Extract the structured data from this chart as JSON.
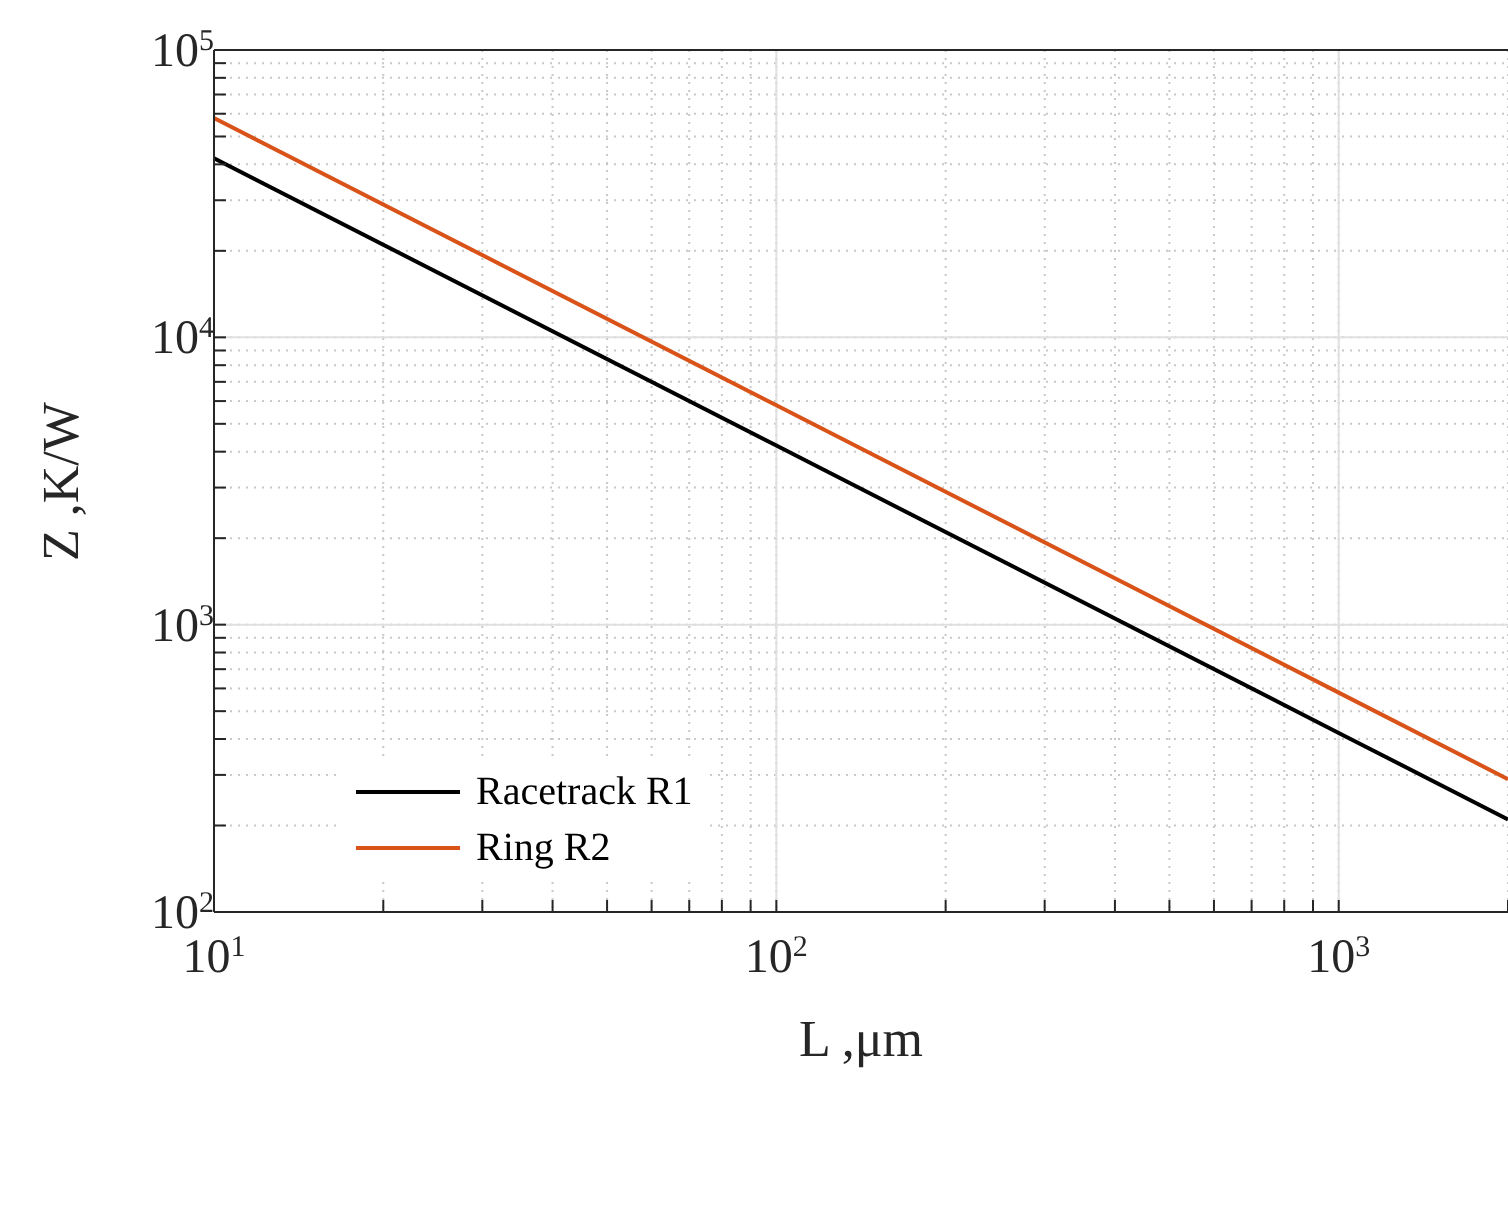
{
  "chart_data": {
    "type": "line",
    "xlabel": "L ,μm",
    "ylabel": "Z ,K/W",
    "log": "xy",
    "grid": true,
    "legend": "bottom left",
    "line_style": "solid",
    "marker": "none",
    "x": [
      10,
      100,
      1000,
      2000
    ],
    "series": [
      {
        "name": "Racetrack R1",
        "color": "#000000",
        "values": [
          42000,
          4200,
          420,
          210
        ]
      },
      {
        "name": "Ring R2",
        "color": "#d95319",
        "values": [
          58000,
          5800,
          580,
          290
        ]
      }
    ],
    "xlim": [
      10,
      2000
    ],
    "xticks": [
      {
        "value": 10,
        "label": "10$^{1}$"
      },
      {
        "value": 20,
        "label": null
      },
      {
        "value": 30,
        "label": null
      },
      {
        "value": 40,
        "label": null
      },
      {
        "value": 50,
        "label": null
      },
      {
        "value": 60,
        "label": null
      },
      {
        "value": 70,
        "label": null
      },
      {
        "value": 80,
        "label": null
      },
      {
        "value": 90,
        "label": null
      },
      {
        "value": 100,
        "label": "10$^{2}$"
      },
      {
        "value": 200,
        "label": null
      },
      {
        "value": 300,
        "label": null
      },
      {
        "value": 400,
        "label": null
      },
      {
        "value": 500,
        "label": null
      },
      {
        "value": 600,
        "label": null
      },
      {
        "value": 700,
        "label": null
      },
      {
        "value": 800,
        "label": null
      },
      {
        "value": 900,
        "label": null
      },
      {
        "value": 1000,
        "label": "10$^{3}$"
      },
      {
        "value": 2000,
        "label": null
      }
    ],
    "ylim": [
      100,
      100000
    ],
    "yticks": [
      {
        "value": 100,
        "label": "10$^{2}$"
      },
      {
        "value": 200,
        "label": null
      },
      {
        "value": 300,
        "label": null
      },
      {
        "value": 400,
        "label": null
      },
      {
        "value": 500,
        "label": null
      },
      {
        "value": 600,
        "label": null
      },
      {
        "value": 700,
        "label": null
      },
      {
        "value": 800,
        "label": null
      },
      {
        "value": 900,
        "label": null
      },
      {
        "value": 1000,
        "label": "10$^{3}$"
      },
      {
        "value": 2000,
        "label": null
      },
      {
        "value": 3000,
        "label": null
      },
      {
        "value": 4000,
        "label": null
      },
      {
        "value": 5000,
        "label": null
      },
      {
        "value": 6000,
        "label": null
      },
      {
        "value": 7000,
        "label": null
      },
      {
        "value": 8000,
        "label": null
      },
      {
        "value": 9000,
        "label": null
      },
      {
        "value": 10000,
        "label": "10$^{4}$"
      },
      {
        "value": 20000,
        "label": null
      },
      {
        "value": 30000,
        "label": null
      },
      {
        "value": 40000,
        "label": null
      },
      {
        "value": 50000,
        "label": null
      },
      {
        "value": 60000,
        "label": null
      },
      {
        "value": 70000,
        "label": null
      },
      {
        "value": 80000,
        "label": null
      },
      {
        "value": 90000,
        "label": null
      },
      {
        "value": 100000,
        "label": "10$^{5}$"
      }
    ]
  }
}
